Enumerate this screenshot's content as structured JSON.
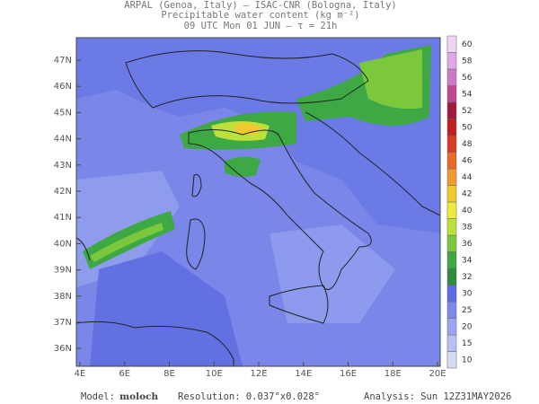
{
  "header": {
    "line1": "ARPAL (Genoa, Italy)  —  ISAC-CNR (Bologna, Italy)",
    "line2": "Precipitable water content (kg m⁻²)",
    "line3": "09 UTC Mon 01 JUN  —  τ = 21h"
  },
  "map": {
    "lat_labels": [
      "47N",
      "46N",
      "45N",
      "44N",
      "43N",
      "42N",
      "41N",
      "40N",
      "39N",
      "38N",
      "37N",
      "36N"
    ],
    "lon_labels": [
      "4E",
      "6E",
      "8E",
      "10E",
      "12E",
      "14E",
      "16E",
      "18E",
      "20E"
    ]
  },
  "colorbar": {
    "levels": [
      10,
      15,
      20,
      25,
      30,
      32,
      34,
      36,
      38,
      40,
      42,
      44,
      46,
      48,
      50,
      52,
      54,
      56,
      58,
      60
    ],
    "colors": [
      "#d4dcf4",
      "#b8c0f4",
      "#9aa4f2",
      "#7c88ee",
      "#5f6ae4",
      "#2e8c3c",
      "#3ea845",
      "#7cc83c",
      "#bce03c",
      "#ecec3c",
      "#f0c830",
      "#f09a30",
      "#e86a24",
      "#d83c20",
      "#c02020",
      "#a01c3c",
      "#c04890",
      "#d078c8",
      "#e0a8e8",
      "#f0d4f4"
    ]
  },
  "footer": {
    "model_label": "Model:",
    "model": "moloch",
    "resolution": "Resolution: 0.037°x0.028°",
    "analysis": "Analysis: Sun 12Z31MAY2026"
  }
}
